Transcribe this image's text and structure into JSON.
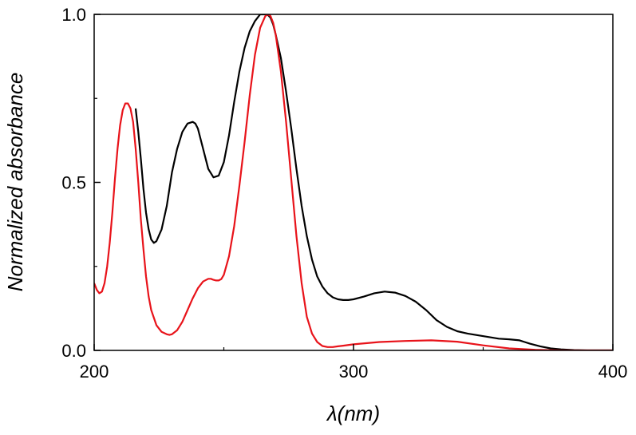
{
  "chart_data": {
    "type": "line",
    "title": "",
    "xlabel": "λ(nm)",
    "ylabel": "Normalized absorbance",
    "xlim": [
      200,
      400
    ],
    "ylim": [
      0,
      1.0
    ],
    "xticks": [
      200,
      300,
      400
    ],
    "xtick_labels": [
      "200",
      "300",
      "400"
    ],
    "yticks": [
      0.0,
      0.5,
      1.0
    ],
    "ytick_labels": [
      "0.0",
      "0.5",
      "1.0"
    ],
    "minor_x_step": 50,
    "minor_y_step": 0.25,
    "grid": false,
    "legend": "none",
    "series": [
      {
        "color": "#000000",
        "x": [
          216,
          217,
          218,
          219,
          220,
          221,
          222,
          223,
          224,
          226,
          228,
          230,
          232,
          234,
          236,
          238,
          239,
          240,
          242,
          244,
          246,
          248,
          250,
          252,
          254,
          256,
          258,
          260,
          262,
          264,
          266,
          267,
          268,
          269,
          270,
          272,
          274,
          276,
          278,
          280,
          282,
          284,
          286,
          288,
          290,
          292,
          294,
          296,
          298,
          300,
          304,
          308,
          312,
          316,
          320,
          324,
          328,
          332,
          336,
          340,
          344,
          348,
          352,
          356,
          360,
          364,
          366,
          368,
          372,
          376,
          380,
          385,
          390,
          400
        ],
        "y": [
          0.72,
          0.65,
          0.57,
          0.48,
          0.41,
          0.36,
          0.33,
          0.32,
          0.325,
          0.36,
          0.43,
          0.53,
          0.6,
          0.65,
          0.675,
          0.68,
          0.675,
          0.66,
          0.6,
          0.54,
          0.515,
          0.52,
          0.56,
          0.64,
          0.74,
          0.83,
          0.9,
          0.95,
          0.98,
          1.0,
          1.0,
          0.998,
          0.99,
          0.97,
          0.94,
          0.87,
          0.77,
          0.66,
          0.54,
          0.43,
          0.34,
          0.27,
          0.22,
          0.19,
          0.17,
          0.158,
          0.152,
          0.15,
          0.15,
          0.152,
          0.16,
          0.17,
          0.175,
          0.172,
          0.162,
          0.145,
          0.12,
          0.09,
          0.07,
          0.057,
          0.05,
          0.045,
          0.04,
          0.035,
          0.033,
          0.03,
          0.025,
          0.02,
          0.012,
          0.006,
          0.003,
          0.001,
          0.0,
          0.0
        ]
      },
      {
        "color": "#e8131a",
        "x": [
          200,
          201,
          202,
          203,
          204,
          205,
          206,
          207,
          208,
          209,
          210,
          211,
          212,
          213,
          214,
          215,
          216,
          217,
          218,
          219,
          220,
          221,
          222,
          224,
          226,
          228,
          229,
          230,
          232,
          234,
          236,
          238,
          240,
          242,
          244,
          245,
          246,
          247,
          248,
          249,
          250,
          252,
          254,
          256,
          258,
          260,
          262,
          264,
          266,
          267,
          268,
          269,
          270,
          272,
          274,
          276,
          278,
          280,
          282,
          284,
          286,
          288,
          290,
          292,
          294,
          296,
          300,
          310,
          320,
          330,
          340,
          350,
          360,
          370,
          380,
          400
        ],
        "y": [
          0.2,
          0.18,
          0.17,
          0.175,
          0.2,
          0.25,
          0.32,
          0.41,
          0.51,
          0.6,
          0.67,
          0.715,
          0.735,
          0.735,
          0.72,
          0.68,
          0.6,
          0.5,
          0.39,
          0.3,
          0.22,
          0.16,
          0.12,
          0.075,
          0.055,
          0.048,
          0.046,
          0.048,
          0.06,
          0.085,
          0.12,
          0.155,
          0.185,
          0.205,
          0.213,
          0.213,
          0.21,
          0.208,
          0.208,
          0.212,
          0.225,
          0.28,
          0.37,
          0.49,
          0.62,
          0.76,
          0.88,
          0.96,
          0.995,
          1.0,
          0.995,
          0.975,
          0.94,
          0.83,
          0.68,
          0.51,
          0.34,
          0.2,
          0.1,
          0.05,
          0.025,
          0.013,
          0.01,
          0.01,
          0.012,
          0.014,
          0.018,
          0.025,
          0.028,
          0.03,
          0.026,
          0.015,
          0.006,
          0.002,
          0.0,
          0.0
        ]
      }
    ]
  }
}
